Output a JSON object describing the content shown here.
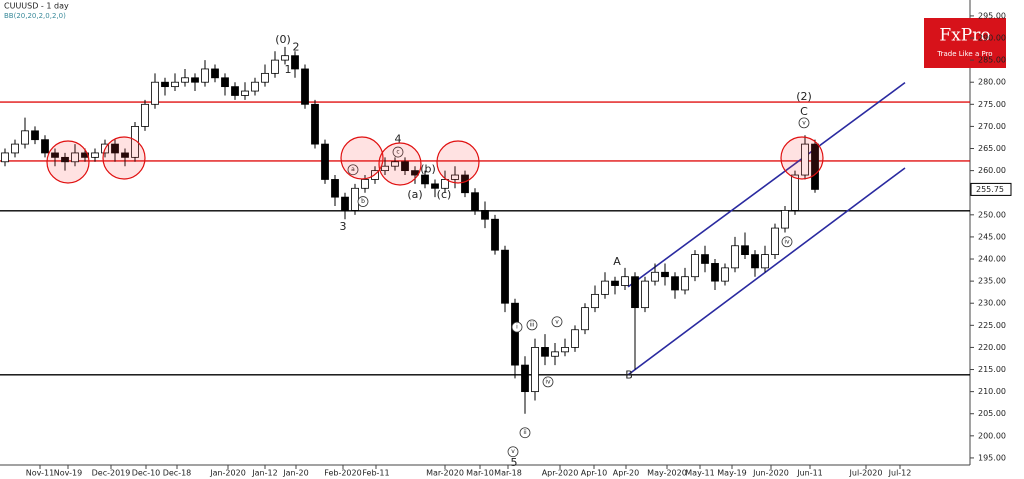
{
  "chart_data": {
    "type": "candlestick",
    "title": "CUUUSD - 1 day",
    "indicator": "BB(20,20,2,0,2,0)",
    "logo": {
      "name": "FxPro",
      "tagline": "Trade Like a Pro"
    },
    "up_color": "#ffffff",
    "down_color": "#000000",
    "open": [
      262,
      264,
      266,
      269,
      267,
      264,
      263,
      262,
      264,
      263,
      264,
      266,
      264,
      263,
      270,
      275,
      280,
      279,
      280,
      281,
      280,
      283,
      281,
      279,
      277,
      278,
      280,
      282,
      285,
      286,
      283,
      275,
      266,
      258,
      254,
      251,
      256,
      258,
      260,
      261,
      262,
      260,
      259,
      257,
      256,
      258,
      259,
      255,
      251,
      249,
      242,
      230,
      216,
      210,
      220,
      218,
      219,
      220,
      224,
      229,
      232,
      235,
      234,
      236,
      229,
      235,
      237,
      236,
      233,
      236,
      241,
      239,
      235,
      238,
      243,
      241,
      238,
      241,
      247,
      251,
      259,
      266
    ],
    "high": [
      265,
      267,
      272,
      270,
      268,
      265,
      264,
      266,
      265,
      265,
      267,
      267,
      265,
      271,
      276,
      282,
      281,
      282,
      283,
      282,
      285,
      284,
      282,
      280,
      280,
      281,
      284,
      287,
      288,
      287,
      284,
      276,
      267,
      259,
      255,
      257,
      259,
      261,
      263,
      263,
      263,
      261,
      260,
      258,
      260,
      261,
      260,
      256,
      253,
      250,
      243,
      231,
      218,
      222,
      223,
      221,
      222,
      225,
      230,
      234,
      237,
      236,
      238,
      237,
      236,
      239,
      239,
      237,
      238,
      242,
      243,
      240,
      239,
      245,
      246,
      242,
      243,
      248,
      252,
      260,
      268,
      267
    ],
    "low": [
      261,
      263,
      265,
      266,
      263,
      261,
      260,
      261,
      262,
      262,
      263,
      262,
      261,
      262,
      269,
      274,
      277,
      278,
      279,
      278,
      279,
      280,
      277,
      276,
      276,
      277,
      279,
      281,
      284,
      281,
      274,
      265,
      257,
      252,
      249,
      250,
      255,
      257,
      259,
      260,
      259,
      257,
      256,
      254,
      255,
      256,
      254,
      250,
      247,
      241,
      228,
      213,
      205,
      208,
      216,
      216,
      218,
      219,
      223,
      228,
      231,
      232,
      233,
      215,
      228,
      234,
      234,
      231,
      232,
      235,
      237,
      233,
      234,
      237,
      240,
      236,
      237,
      240,
      246,
      250,
      258,
      255
    ],
    "close": [
      264,
      266,
      269,
      267,
      264,
      263,
      262,
      264,
      263,
      264,
      266,
      264,
      263,
      270,
      275,
      280,
      279,
      280,
      281,
      280,
      283,
      281,
      279,
      277,
      278,
      280,
      282,
      285,
      286,
      283,
      275,
      266,
      258,
      254,
      251,
      256,
      258,
      260,
      261,
      262,
      260,
      259,
      257,
      256,
      258,
      259,
      255,
      251,
      249,
      242,
      230,
      216,
      210,
      220,
      218,
      219,
      220,
      224,
      229,
      232,
      235,
      234,
      236,
      229,
      235,
      237,
      236,
      233,
      236,
      241,
      239,
      235,
      238,
      243,
      241,
      238,
      241,
      247,
      251,
      259,
      266,
      255.75
    ],
    "xlim": [
      -0.5,
      96.5
    ],
    "xticks": [
      {
        "value": 3.5,
        "label": "Nov-11"
      },
      {
        "value": 6.3,
        "label": "Nov-19"
      },
      {
        "value": 10.6,
        "label": "Dec-2019"
      },
      {
        "value": 14.1,
        "label": "Dec-10"
      },
      {
        "value": 17.2,
        "label": "Dec-18"
      },
      {
        "value": 22.3,
        "label": "Jan-2020"
      },
      {
        "value": 26,
        "label": "Jan-12"
      },
      {
        "value": 29.1,
        "label": "Jan-20"
      },
      {
        "value": 33.8,
        "label": "Feb-2020"
      },
      {
        "value": 37.1,
        "label": "Feb-11"
      },
      {
        "value": 44,
        "label": "Mar-2020"
      },
      {
        "value": 47.5,
        "label": "Mar-10"
      },
      {
        "value": 50.3,
        "label": "Mar-18"
      },
      {
        "value": 55.5,
        "label": "Apr-2020"
      },
      {
        "value": 58.9,
        "label": "Apr-10"
      },
      {
        "value": 62.1,
        "label": "Apr-20"
      },
      {
        "value": 66.2,
        "label": "May-2020"
      },
      {
        "value": 69.5,
        "label": "May-11"
      },
      {
        "value": 72.7,
        "label": "May-19"
      },
      {
        "value": 76.6,
        "label": "Jun-2020"
      },
      {
        "value": 80.5,
        "label": "Jun-11"
      },
      {
        "value": 86.1,
        "label": "Jul-2020"
      },
      {
        "value": 89.5,
        "label": "Jul-12"
      }
    ],
    "ylim": [
      193.4,
      298.6
    ],
    "yticks": [
      {
        "value": 195,
        "label": "195.00"
      },
      {
        "value": 200,
        "label": "200.00"
      },
      {
        "value": 205,
        "label": "205.00"
      },
      {
        "value": 210,
        "label": "210.00"
      },
      {
        "value": 215,
        "label": "215.00"
      },
      {
        "value": 220,
        "label": "220.00"
      },
      {
        "value": 225,
        "label": "225.00"
      },
      {
        "value": 230,
        "label": "230.00"
      },
      {
        "value": 235,
        "label": "235.00"
      },
      {
        "value": 240,
        "label": "240.00"
      },
      {
        "value": 245,
        "label": "245.00"
      },
      {
        "value": 250,
        "label": "250.00"
      },
      {
        "value": 255,
        "label": "255.00"
      },
      {
        "value": 260,
        "label": "260.00"
      },
      {
        "value": 265,
        "label": "265.00"
      },
      {
        "value": 270,
        "label": "270.00"
      },
      {
        "value": 275,
        "label": "275.00"
      },
      {
        "value": 280,
        "label": "280.00"
      },
      {
        "value": 285,
        "label": "285.00"
      },
      {
        "value": 290,
        "label": "290.00"
      },
      {
        "value": 295,
        "label": "295.00"
      }
    ],
    "hlines": [
      {
        "value": 275.5,
        "color": "#e01010"
      },
      {
        "value": 262.2,
        "color": "#e01010"
      },
      {
        "value": 250.9,
        "color": "#000000"
      },
      {
        "value": 213.8,
        "color": "#000000"
      }
    ],
    "channel": {
      "color": "#2a2aa0",
      "lines": [
        [
          [
            62.3,
            233.7
          ],
          [
            90,
            279.9
          ]
        ],
        [
          [
            62.3,
            213.8
          ],
          [
            90,
            260.6
          ]
        ]
      ]
    },
    "annotations": [
      {
        "text": "(0)",
        "x": 27.8,
        "y": 289.6,
        "circled": false
      },
      {
        "text": "2",
        "x": 29.1,
        "y": 287.8,
        "circled": false
      },
      {
        "text": "1",
        "x": 28.3,
        "y": 282.8,
        "circled": false
      },
      {
        "text": "3",
        "x": 33.8,
        "y": 247.3,
        "circled": false
      },
      {
        "text": "4",
        "x": 39.3,
        "y": 267,
        "circled": false
      },
      {
        "text": "5",
        "x": 50.9,
        "y": 193.9,
        "circled": false
      },
      {
        "text": "A",
        "x": 61.2,
        "y": 239.3,
        "circled": false
      },
      {
        "text": "B",
        "x": 62.4,
        "y": 213.6,
        "circled": false
      },
      {
        "text": "C",
        "x": 79.9,
        "y": 273.3,
        "circled": false
      },
      {
        "text": "(2)",
        "x": 79.9,
        "y": 276.7,
        "circled": false
      },
      {
        "text": "(a)",
        "x": 41,
        "y": 254.5,
        "circled": false
      },
      {
        "text": "(b)",
        "x": 42.3,
        "y": 260.2,
        "circled": false
      },
      {
        "text": "(c)",
        "x": 43.9,
        "y": 254.5,
        "circled": false
      },
      {
        "text": "a",
        "x": 34.8,
        "y": 260.2,
        "circled": true
      },
      {
        "text": "b",
        "x": 35.8,
        "y": 253,
        "circled": true
      },
      {
        "text": "c",
        "x": 39.3,
        "y": 264.2,
        "circled": true
      },
      {
        "text": "i",
        "x": 51.2,
        "y": 224.6,
        "circled": true
      },
      {
        "text": "ii",
        "x": 52,
        "y": 200.7,
        "circled": true
      },
      {
        "text": "iii",
        "x": 52.7,
        "y": 225.1,
        "circled": true
      },
      {
        "text": "iv",
        "x": 54.3,
        "y": 212.2,
        "circled": true
      },
      {
        "text": "v",
        "x": 55.2,
        "y": 225.8,
        "circled": true
      },
      {
        "text": "v",
        "x": 50.8,
        "y": 196.4,
        "circled": true
      },
      {
        "text": "iv",
        "x": 78.2,
        "y": 243.9,
        "circled": true
      },
      {
        "text": "v",
        "x": 79.9,
        "y": 270.8,
        "circled": true
      }
    ]
  }
}
